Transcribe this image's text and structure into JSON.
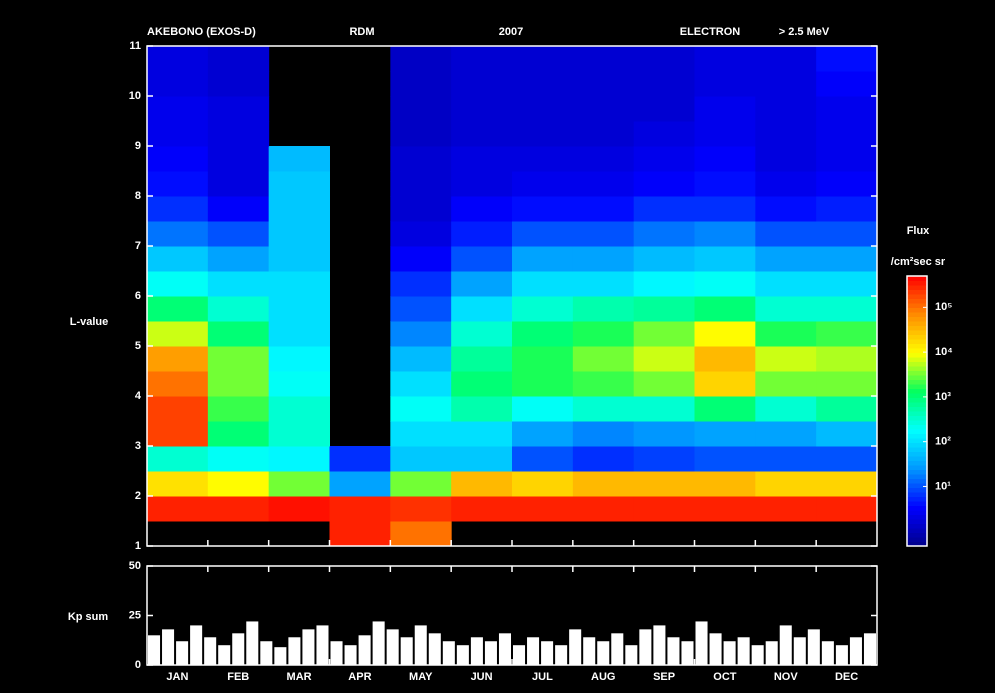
{
  "chart_data": [
    {
      "type": "heatmap",
      "title": "AKEBONO (EXOS-D)",
      "instrument": "RDM",
      "year": "2007",
      "particle": "ELECTRON",
      "energy": "> 2.5 MeV",
      "ylabel": "L-value",
      "categories": [
        "JAN",
        "FEB",
        "MAR",
        "APR",
        "MAY",
        "JUN",
        "JUL",
        "AUG",
        "SEP",
        "OCT",
        "NOV",
        "DEC"
      ],
      "ylim": [
        1,
        11
      ],
      "yticks": [
        1,
        2,
        3,
        4,
        5,
        6,
        7,
        8,
        9,
        10,
        11
      ],
      "y_bins": [
        1,
        1.5,
        2,
        2.5,
        3,
        3.5,
        4,
        4.5,
        5,
        5.5,
        6,
        6.5,
        7,
        7.5,
        8,
        8.5,
        9,
        9.5,
        10,
        10.5,
        11
      ],
      "z": [
        [
          null,
          null,
          null,
          5.5,
          5.0,
          null,
          null,
          null,
          null,
          null,
          null,
          null
        ],
        [
          5.5,
          5.5,
          5.6,
          5.5,
          5.4,
          5.5,
          5.5,
          5.5,
          5.5,
          5.5,
          5.5,
          5.5
        ],
        [
          4.2,
          4.0,
          3.5,
          1.5,
          3.5,
          4.5,
          4.3,
          4.5,
          4.5,
          4.5,
          4.3,
          4.3
        ],
        [
          2.5,
          2.3,
          2.2,
          0.8,
          1.8,
          1.8,
          1.0,
          0.8,
          0.9,
          1.0,
          1.0,
          1.0
        ],
        [
          5.3,
          3.0,
          2.5,
          null,
          2.0,
          2.0,
          1.5,
          1.3,
          1.4,
          1.5,
          1.5,
          1.7
        ],
        [
          5.3,
          3.3,
          2.5,
          null,
          2.3,
          2.7,
          2.3,
          2.5,
          2.5,
          3.0,
          2.5,
          2.8
        ],
        [
          5.0,
          3.5,
          2.3,
          null,
          2.0,
          3.0,
          3.2,
          3.3,
          3.5,
          4.3,
          3.5,
          3.5
        ],
        [
          4.7,
          3.5,
          2.2,
          null,
          1.7,
          2.8,
          3.2,
          3.5,
          3.8,
          4.5,
          3.8,
          3.7
        ],
        [
          3.8,
          3.0,
          2.0,
          null,
          1.3,
          2.5,
          3.0,
          3.2,
          3.5,
          4.0,
          3.2,
          3.3
        ],
        [
          3.0,
          2.5,
          2.0,
          null,
          1.0,
          2.0,
          2.5,
          2.7,
          2.8,
          3.0,
          2.5,
          2.5
        ],
        [
          2.3,
          2.0,
          2.0,
          null,
          0.8,
          1.5,
          2.0,
          2.0,
          2.2,
          2.3,
          2.0,
          2.0
        ],
        [
          1.8,
          1.5,
          1.8,
          null,
          0.5,
          1.0,
          1.5,
          1.5,
          1.7,
          1.8,
          1.5,
          1.5
        ],
        [
          1.2,
          1.0,
          1.8,
          null,
          0.3,
          0.7,
          1.0,
          1.0,
          1.2,
          1.3,
          1.0,
          1.0
        ],
        [
          0.8,
          0.5,
          1.8,
          null,
          0.2,
          0.5,
          0.6,
          0.6,
          0.8,
          0.8,
          0.6,
          0.7
        ],
        [
          0.6,
          0.3,
          1.8,
          null,
          0.2,
          0.3,
          0.4,
          0.4,
          0.5,
          0.6,
          0.4,
          0.5
        ],
        [
          0.5,
          0.3,
          1.7,
          null,
          0.2,
          0.3,
          0.3,
          0.3,
          0.4,
          0.5,
          0.3,
          0.4
        ],
        [
          0.4,
          0.3,
          null,
          null,
          0.1,
          0.2,
          0.2,
          0.2,
          0.3,
          0.4,
          0.3,
          0.4
        ],
        [
          0.4,
          0.3,
          null,
          null,
          0.1,
          0.2,
          0.2,
          0.2,
          0.2,
          0.4,
          0.3,
          0.4
        ],
        [
          0.3,
          0.2,
          null,
          null,
          0.1,
          0.2,
          0.2,
          0.2,
          0.2,
          0.3,
          0.3,
          0.5
        ],
        [
          0.3,
          0.2,
          null,
          null,
          0.1,
          0.2,
          0.2,
          0.2,
          0.2,
          0.3,
          0.3,
          0.6
        ]
      ],
      "colorbar_label": "Flux",
      "colorbar_unit": "/cm²sec sr",
      "zlim": [
        -0.33,
        5.7
      ],
      "zticks": [
        {
          "value": 1,
          "label": "10¹"
        },
        {
          "value": 2,
          "label": "10²"
        },
        {
          "value": 3,
          "label": "10³"
        },
        {
          "value": 4,
          "label": "10⁴"
        },
        {
          "value": 5,
          "label": "10⁵"
        }
      ],
      "colormap": [
        "#00008b",
        "#0000ff",
        "#0096ff",
        "#00ffff",
        "#00ff60",
        "#ffff00",
        "#ff8c00",
        "#ff0000"
      ]
    },
    {
      "type": "bar",
      "ylabel": "Kp sum",
      "color": "#ffffff",
      "ylim": [
        0,
        50
      ],
      "yticks": [
        0,
        25,
        50
      ],
      "values": [
        15,
        18,
        12,
        20,
        14,
        10,
        16,
        22,
        12,
        9,
        14,
        18,
        20,
        12,
        10,
        15,
        22,
        18,
        14,
        20,
        16,
        12,
        10,
        14,
        12,
        16,
        10,
        14,
        12,
        10,
        18,
        14,
        12,
        16,
        10,
        18,
        20,
        14,
        12,
        22,
        16,
        12,
        14,
        10,
        12,
        20,
        14,
        18,
        12,
        10,
        14,
        16
      ]
    }
  ]
}
